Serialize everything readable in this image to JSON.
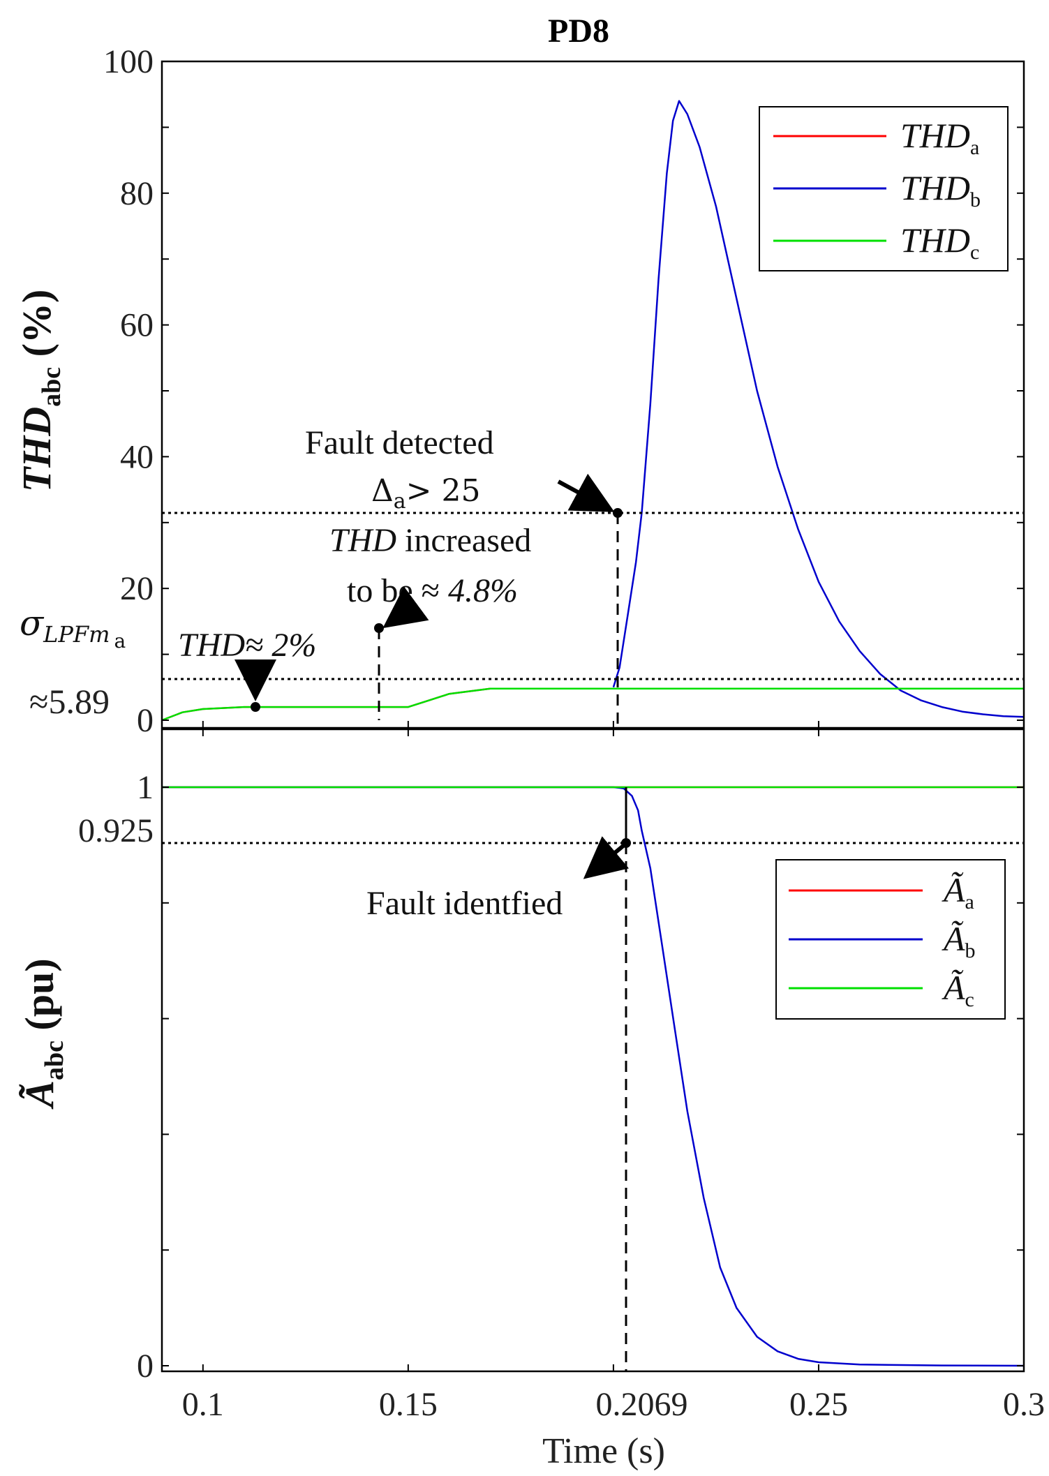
{
  "title": "PD8",
  "top_chart": {
    "ylabel_main": "THD",
    "ylabel_sub": "abc",
    "ylabel_unit": " (%)",
    "yticks": [
      "0",
      "20",
      "40",
      "60",
      "80",
      "100"
    ],
    "threshold_label_main": "σ",
    "threshold_label_sub": "LPFm",
    "threshold_label_subsub": "a",
    "threshold_value_label": "≈5.89",
    "legend": [
      {
        "main": "THD",
        "sub": "a",
        "color": "#ff0000"
      },
      {
        "main": "THD",
        "sub": "b",
        "color": "#0000cd"
      },
      {
        "main": "THD",
        "sub": "c",
        "color": "#00e000"
      }
    ],
    "annotations": {
      "fault_detected": "Fault detected",
      "delta_main": "Δ",
      "delta_sub": "a",
      "delta_rest": "> 25",
      "thd_inc_italic": "THD",
      "thd_inc_rest": " increased",
      "to_be": "to be ≈ ",
      "to_be_val": "4.8%",
      "thd2_italic": "THD",
      "thd2_rest": "≈ 2%"
    }
  },
  "bottom_chart": {
    "ylabel_main": "Ã",
    "ylabel_sub": "abc",
    "ylabel_unit": " (pu)",
    "yticks": [
      "0",
      "0.925",
      "1"
    ],
    "legend": [
      {
        "main": "Ã",
        "sub": "a",
        "color": "#ff0000"
      },
      {
        "main": "Ã",
        "sub": "b",
        "color": "#0000cd"
      },
      {
        "main": "Ã",
        "sub": "c",
        "color": "#00e000"
      }
    ],
    "annotations": {
      "fault_identified": "Fault identfied"
    }
  },
  "xaxis": {
    "label": "Time (s)",
    "ticks": [
      "0.1",
      "0.15",
      "0.2069",
      "0.25",
      "0.3"
    ]
  },
  "chart_data": [
    {
      "type": "line",
      "title": "PD8",
      "xlabel": "",
      "ylabel": "THD_abc (%)",
      "xlim": [
        0.09,
        0.3
      ],
      "ylim": [
        0,
        100
      ],
      "threshold": 5.89,
      "detect_level": 31.5,
      "series": [
        {
          "name": "THD_a",
          "color": "#ff0000",
          "x": [
            0.09,
            0.095,
            0.1,
            0.11,
            0.12,
            0.15,
            0.155,
            0.16,
            0.17,
            0.2,
            0.25,
            0.3
          ],
          "y": [
            0,
            1.2,
            1.7,
            2.0,
            2.0,
            2.0,
            3.0,
            4.0,
            4.8,
            4.8,
            4.8,
            4.8
          ]
        },
        {
          "name": "THD_b",
          "color": "#0000cd",
          "x": [
            0.2,
            0.2015,
            0.2035,
            0.2055,
            0.2069,
            0.209,
            0.211,
            0.213,
            0.2145,
            0.216,
            0.218,
            0.221,
            0.225,
            0.23,
            0.235,
            0.24,
            0.245,
            0.25,
            0.255,
            0.26,
            0.265,
            0.27,
            0.275,
            0.28,
            0.285,
            0.29,
            0.295,
            0.3
          ],
          "y": [
            5.0,
            8.0,
            16.0,
            24.0,
            31.5,
            48.0,
            67.0,
            83.0,
            91.0,
            94.0,
            92.0,
            87.0,
            78.0,
            64.0,
            50.0,
            38.5,
            29.0,
            21.0,
            15.0,
            10.5,
            7.0,
            4.5,
            3.0,
            2.0,
            1.3,
            0.9,
            0.6,
            0.5
          ]
        },
        {
          "name": "THD_c",
          "color": "#00e000",
          "x": [
            0.09,
            0.095,
            0.1,
            0.11,
            0.12,
            0.15,
            0.155,
            0.16,
            0.17,
            0.2,
            0.25,
            0.3
          ],
          "y": [
            0,
            1.2,
            1.7,
            2.0,
            2.0,
            2.0,
            3.0,
            4.0,
            4.8,
            4.8,
            4.8,
            4.8
          ]
        }
      ]
    },
    {
      "type": "line",
      "xlabel": "Time (s)",
      "ylabel": "Ã_abc (pu)",
      "xlim": [
        0.09,
        0.3
      ],
      "ylim": [
        0,
        1.1
      ],
      "threshold": 0.925,
      "series": [
        {
          "name": "Ã_a",
          "color": "#ff0000",
          "x": [
            0.09,
            0.3
          ],
          "y": [
            1.0,
            1.0
          ]
        },
        {
          "name": "Ã_b",
          "color": "#0000cd",
          "x": [
            0.09,
            0.2,
            0.2025,
            0.2045,
            0.206,
            0.2069,
            0.209,
            0.212,
            0.215,
            0.218,
            0.222,
            0.226,
            0.23,
            0.235,
            0.24,
            0.245,
            0.25,
            0.26,
            0.28,
            0.3
          ],
          "y": [
            1.0,
            1.0,
            0.998,
            0.985,
            0.96,
            0.925,
            0.86,
            0.72,
            0.58,
            0.44,
            0.29,
            0.17,
            0.1,
            0.05,
            0.025,
            0.012,
            0.006,
            0.002,
            0.0005,
            0.0
          ]
        },
        {
          "name": "Ã_c",
          "color": "#00e000",
          "x": [
            0.09,
            0.3
          ],
          "y": [
            1.0,
            1.0
          ]
        }
      ]
    }
  ]
}
